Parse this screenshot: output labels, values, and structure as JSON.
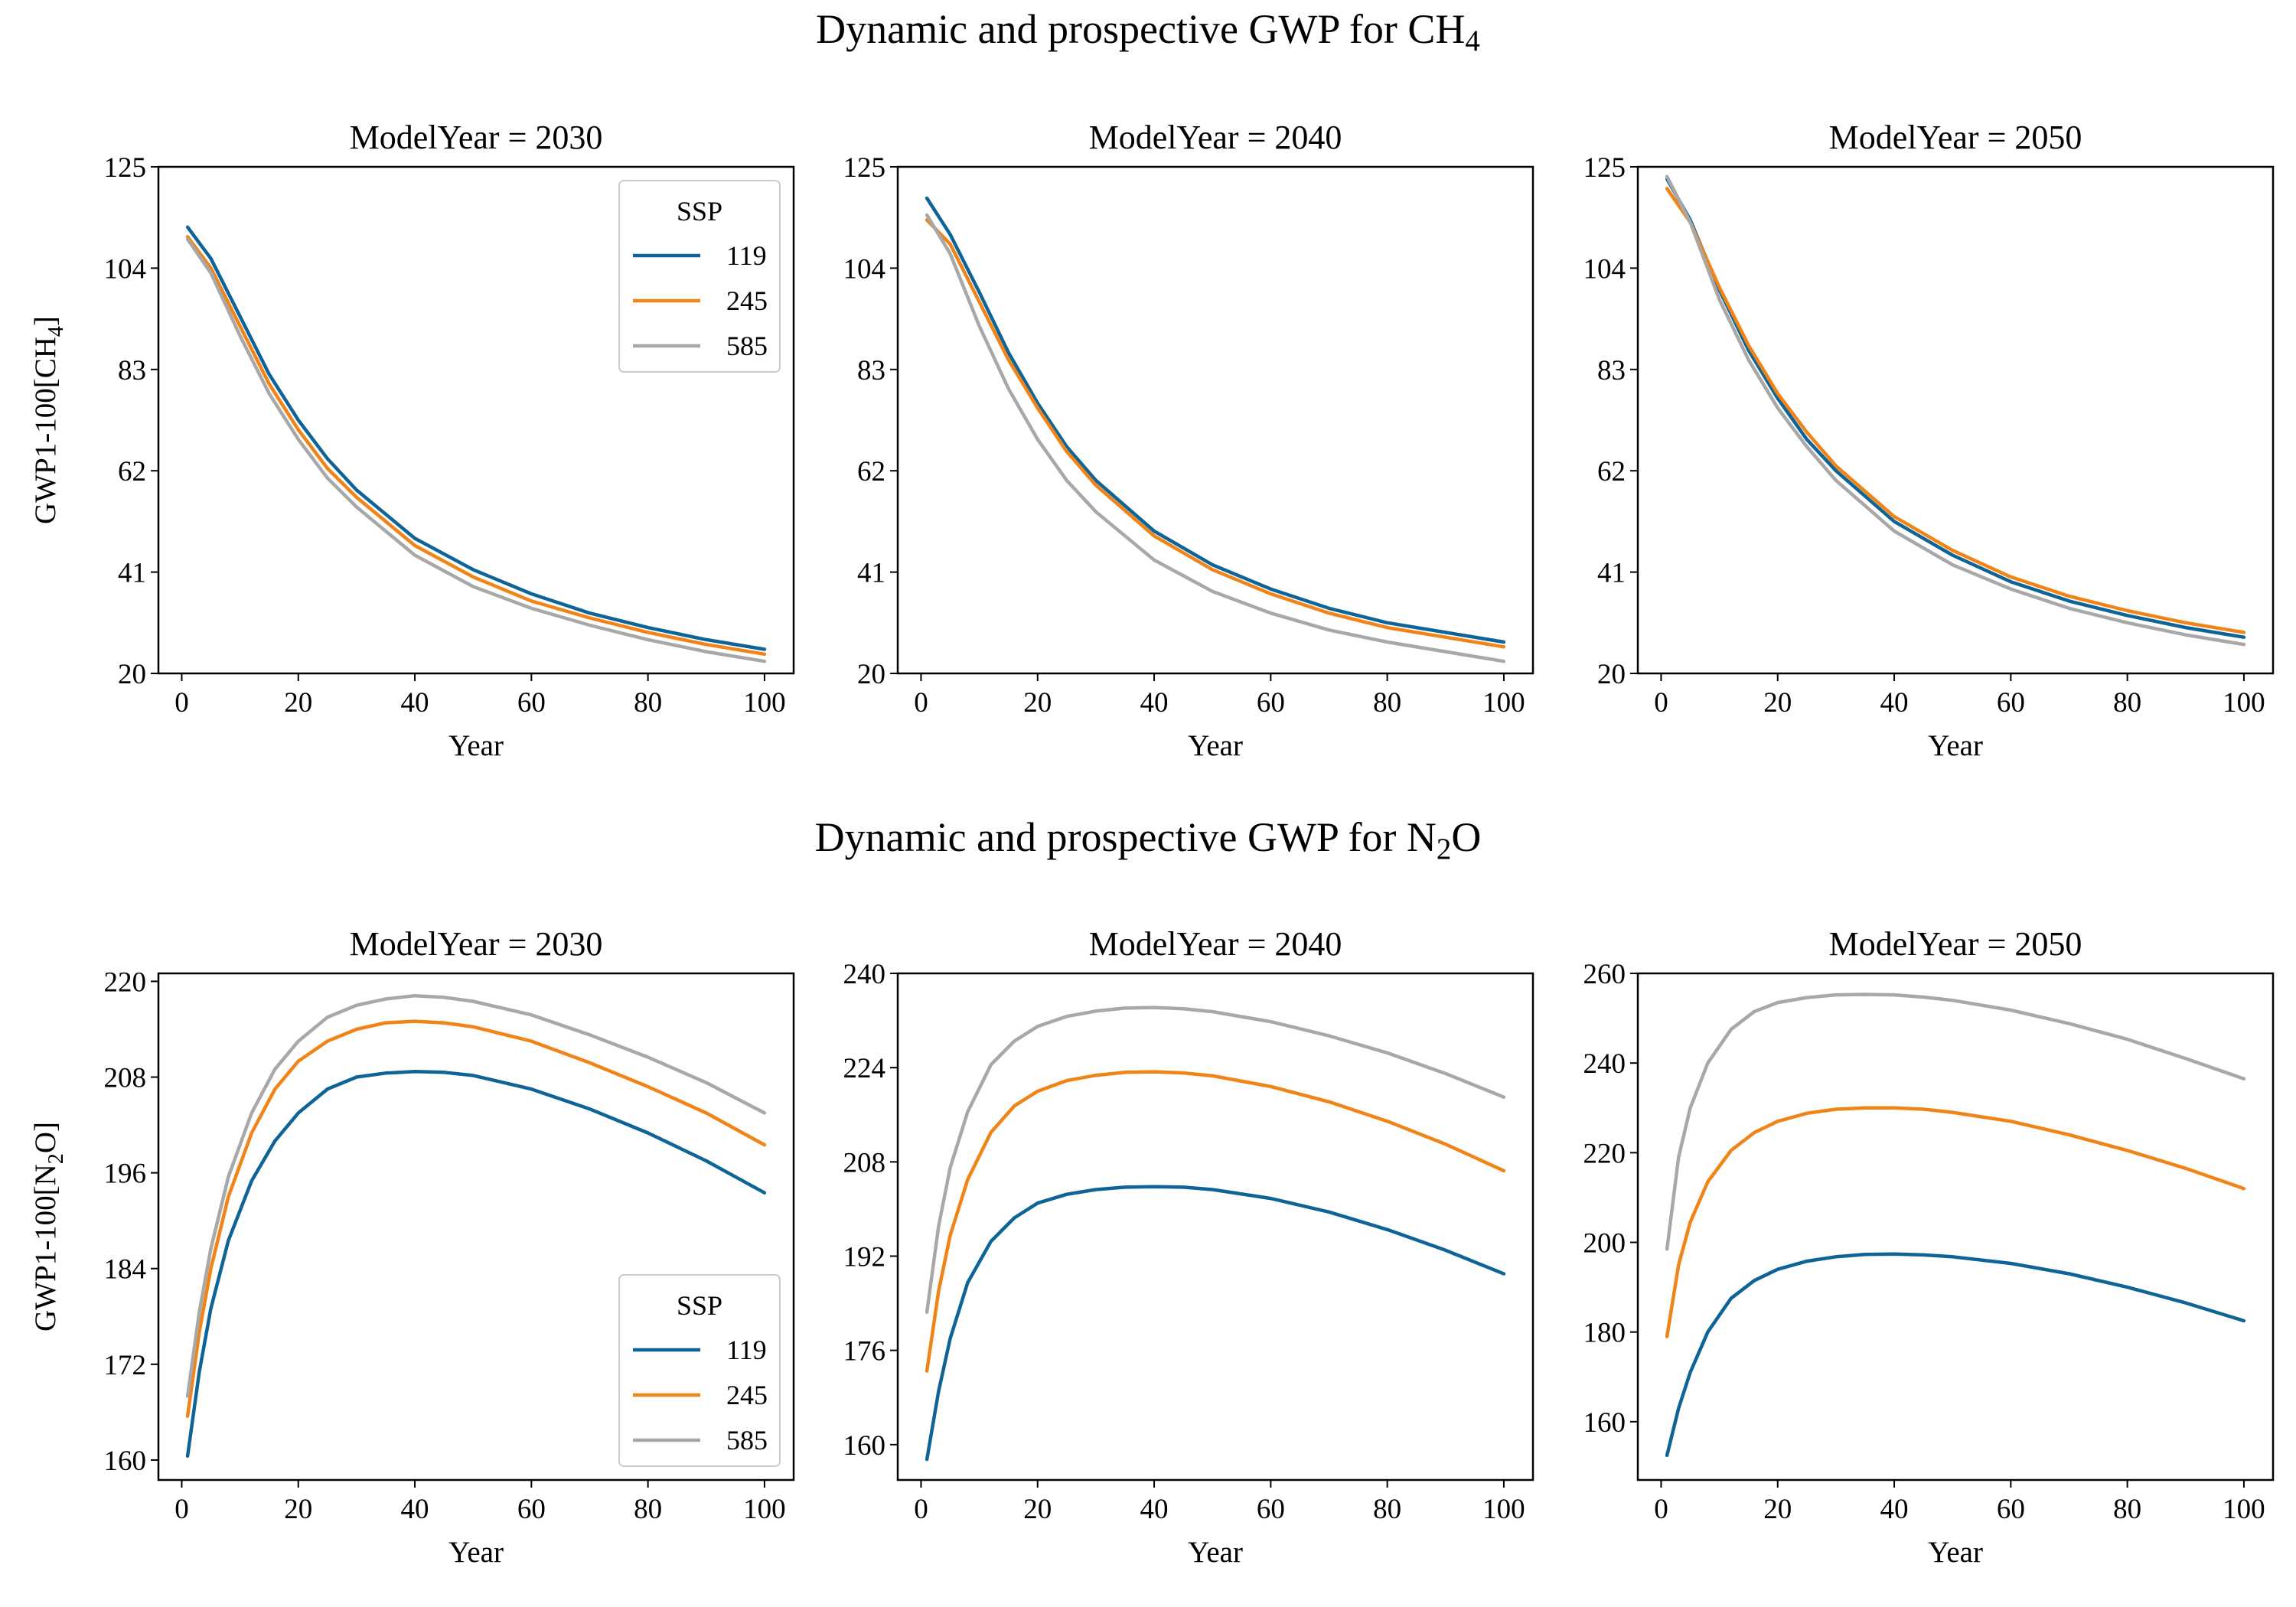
{
  "figure": {
    "row_titles": [
      {
        "base": "Dynamic and prospective GWP for CH",
        "sub": "4",
        "tail": ""
      },
      {
        "base": "Dynamic and prospective GWP for N",
        "sub": "2",
        "tail": "O"
      }
    ]
  },
  "chart_data": [
    {
      "type": "line",
      "title": "ModelYear = 2030",
      "xlabel": "Year",
      "ylabel": {
        "base": "GWP1-100[CH",
        "sub": "4",
        "tail": "]"
      },
      "xlim": [
        -4,
        105
      ],
      "ylim": [
        20,
        125
      ],
      "xticks": [
        0,
        20,
        40,
        60,
        80,
        100
      ],
      "yticks": [
        20,
        41,
        62,
        83,
        104,
        125
      ],
      "x": [
        1,
        5,
        10,
        15,
        20,
        25,
        30,
        40,
        50,
        60,
        70,
        80,
        90,
        100
      ],
      "series": [
        {
          "name": "119",
          "values": [
            112.5,
            106,
            94,
            82,
            72.5,
            64.5,
            58,
            48,
            41.5,
            36.5,
            32.5,
            29.5,
            27,
            25
          ]
        },
        {
          "name": "245",
          "values": [
            110.5,
            104,
            92,
            80,
            70.5,
            62.5,
            56.5,
            46.5,
            40,
            35,
            31.5,
            28.5,
            26,
            24
          ]
        },
        {
          "name": "585",
          "values": [
            110,
            103,
            90,
            78,
            68.5,
            60.5,
            54.5,
            44.5,
            38,
            33.5,
            30,
            27,
            24.5,
            22.5
          ]
        }
      ],
      "legend": {
        "title": "SSP",
        "position": "top-right"
      }
    },
    {
      "type": "line",
      "title": "ModelYear = 2040",
      "xlabel": "Year",
      "ylabel": null,
      "xlim": [
        -4,
        105
      ],
      "ylim": [
        20,
        125
      ],
      "xticks": [
        0,
        20,
        40,
        60,
        80,
        100
      ],
      "yticks": [
        20,
        41,
        62,
        83,
        104,
        125
      ],
      "x": [
        1,
        5,
        10,
        15,
        20,
        25,
        30,
        40,
        50,
        60,
        70,
        80,
        90,
        100
      ],
      "series": [
        {
          "name": "119",
          "values": [
            118.5,
            111,
            99,
            86.5,
            76,
            67,
            60,
            49.5,
            42.5,
            37.5,
            33.5,
            30.5,
            28.5,
            26.5
          ]
        },
        {
          "name": "245",
          "values": [
            114,
            109,
            97,
            85,
            75,
            66,
            59,
            48.5,
            41.5,
            36.5,
            32.5,
            29.5,
            27.5,
            25.5
          ]
        },
        {
          "name": "585",
          "values": [
            115,
            107,
            92,
            79,
            68.5,
            60,
            53.5,
            43.5,
            37,
            32.5,
            29,
            26.5,
            24.5,
            22.5
          ]
        }
      ],
      "legend": null
    },
    {
      "type": "line",
      "title": "ModelYear = 2050",
      "xlabel": "Year",
      "ylabel": null,
      "xlim": [
        -4,
        105
      ],
      "ylim": [
        20,
        125
      ],
      "xticks": [
        0,
        20,
        40,
        60,
        80,
        100
      ],
      "yticks": [
        20,
        41,
        62,
        83,
        104,
        125
      ],
      "x": [
        1,
        5,
        10,
        15,
        20,
        25,
        30,
        40,
        50,
        60,
        70,
        80,
        90,
        100
      ],
      "series": [
        {
          "name": "119",
          "values": [
            122.5,
            114,
            99.5,
            87,
            77,
            68.5,
            62,
            51.5,
            44.5,
            39,
            35,
            32,
            29.5,
            27.5
          ]
        },
        {
          "name": "245",
          "values": [
            120.5,
            113.5,
            100,
            88,
            78,
            70,
            63,
            52.5,
            45.5,
            40,
            36,
            33,
            30.5,
            28.5
          ]
        },
        {
          "name": "585",
          "values": [
            123,
            113.5,
            97.5,
            85,
            75,
            67,
            60,
            49.5,
            42.5,
            37.5,
            33.5,
            30.5,
            28,
            26
          ]
        }
      ],
      "legend": null
    },
    {
      "type": "line",
      "title": "ModelYear = 2030",
      "xlabel": "Year",
      "ylabel": {
        "base": "GWP1-100[N",
        "sub": "2",
        "tail": "O]"
      },
      "xlim": [
        -4,
        105
      ],
      "ylim": [
        157.5,
        221
      ],
      "xticks": [
        0,
        20,
        40,
        60,
        80,
        100
      ],
      "yticks": [
        160,
        172,
        184,
        196,
        208,
        220
      ],
      "x": [
        1,
        3,
        5,
        8,
        12,
        16,
        20,
        25,
        30,
        35,
        40,
        45,
        50,
        60,
        70,
        80,
        90,
        100
      ],
      "series": [
        {
          "name": "119",
          "values": [
            160.5,
            171,
            179,
            187.5,
            195,
            200,
            203.5,
            206.5,
            208,
            208.5,
            208.7,
            208.6,
            208.2,
            206.5,
            204,
            201,
            197.5,
            193.5
          ]
        },
        {
          "name": "245",
          "values": [
            165.5,
            176,
            184,
            193,
            201,
            206.5,
            210,
            212.5,
            214,
            214.8,
            215,
            214.8,
            214.3,
            212.5,
            209.8,
            206.8,
            203.5,
            199.5
          ]
        },
        {
          "name": "585",
          "values": [
            168,
            178.5,
            186.5,
            195.5,
            203.5,
            209,
            212.5,
            215.5,
            217,
            217.8,
            218.2,
            218,
            217.5,
            215.8,
            213.3,
            210.5,
            207.3,
            203.5
          ]
        }
      ],
      "legend": {
        "title": "SSP",
        "position": "bottom-right"
      }
    },
    {
      "type": "line",
      "title": "ModelYear = 2040",
      "xlabel": "Year",
      "ylabel": null,
      "xlim": [
        -4,
        105
      ],
      "ylim": [
        154,
        240
      ],
      "xticks": [
        0,
        20,
        40,
        60,
        80,
        100
      ],
      "yticks": [
        160,
        176,
        192,
        208,
        224,
        240
      ],
      "x": [
        1,
        3,
        5,
        8,
        12,
        16,
        20,
        25,
        30,
        35,
        40,
        45,
        50,
        60,
        70,
        80,
        90,
        100
      ],
      "series": [
        {
          "name": "119",
          "values": [
            157.5,
            169,
            178,
            187.5,
            194.5,
            198.5,
            201,
            202.5,
            203.3,
            203.7,
            203.8,
            203.7,
            203.3,
            201.8,
            199.5,
            196.5,
            193,
            189
          ]
        },
        {
          "name": "245",
          "values": [
            172.5,
            186,
            195.5,
            205,
            213,
            217.5,
            220,
            221.8,
            222.7,
            223.2,
            223.3,
            223.1,
            222.6,
            220.8,
            218.2,
            214.9,
            211,
            206.5
          ]
        },
        {
          "name": "585",
          "values": [
            182.5,
            197,
            207,
            216.5,
            224.5,
            228.5,
            231,
            232.7,
            233.6,
            234.1,
            234.2,
            234,
            233.5,
            231.8,
            229.4,
            226.5,
            223,
            219
          ]
        }
      ],
      "legend": null
    },
    {
      "type": "line",
      "title": "ModelYear = 2050",
      "xlabel": "Year",
      "ylabel": null,
      "xlim": [
        -4,
        105
      ],
      "ylim": [
        147,
        260
      ],
      "xticks": [
        0,
        20,
        40,
        60,
        80,
        100
      ],
      "yticks": [
        160,
        180,
        200,
        220,
        240,
        260
      ],
      "x": [
        1,
        3,
        5,
        8,
        12,
        16,
        20,
        25,
        30,
        35,
        40,
        45,
        50,
        60,
        70,
        80,
        90,
        100
      ],
      "series": [
        {
          "name": "119",
          "values": [
            152.5,
            163,
            171,
            180,
            187.5,
            191.5,
            194,
            195.8,
            196.8,
            197.3,
            197.4,
            197.2,
            196.8,
            195.3,
            193,
            190,
            186.5,
            182.5
          ]
        },
        {
          "name": "245",
          "values": [
            179,
            195,
            204.5,
            213.5,
            220.5,
            224.5,
            227,
            228.8,
            229.7,
            230,
            230,
            229.7,
            229,
            227,
            224,
            220.5,
            216.5,
            212
          ]
        },
        {
          "name": "585",
          "values": [
            198.5,
            219,
            230,
            240,
            247.5,
            251.5,
            253.5,
            254.6,
            255.2,
            255.3,
            255.2,
            254.7,
            254,
            251.8,
            248.8,
            245.3,
            241,
            236.5
          ]
        }
      ],
      "legend": null
    }
  ],
  "colors": {
    "119": "#0e6496",
    "245": "#f08418",
    "585": "#a8a8a8"
  }
}
